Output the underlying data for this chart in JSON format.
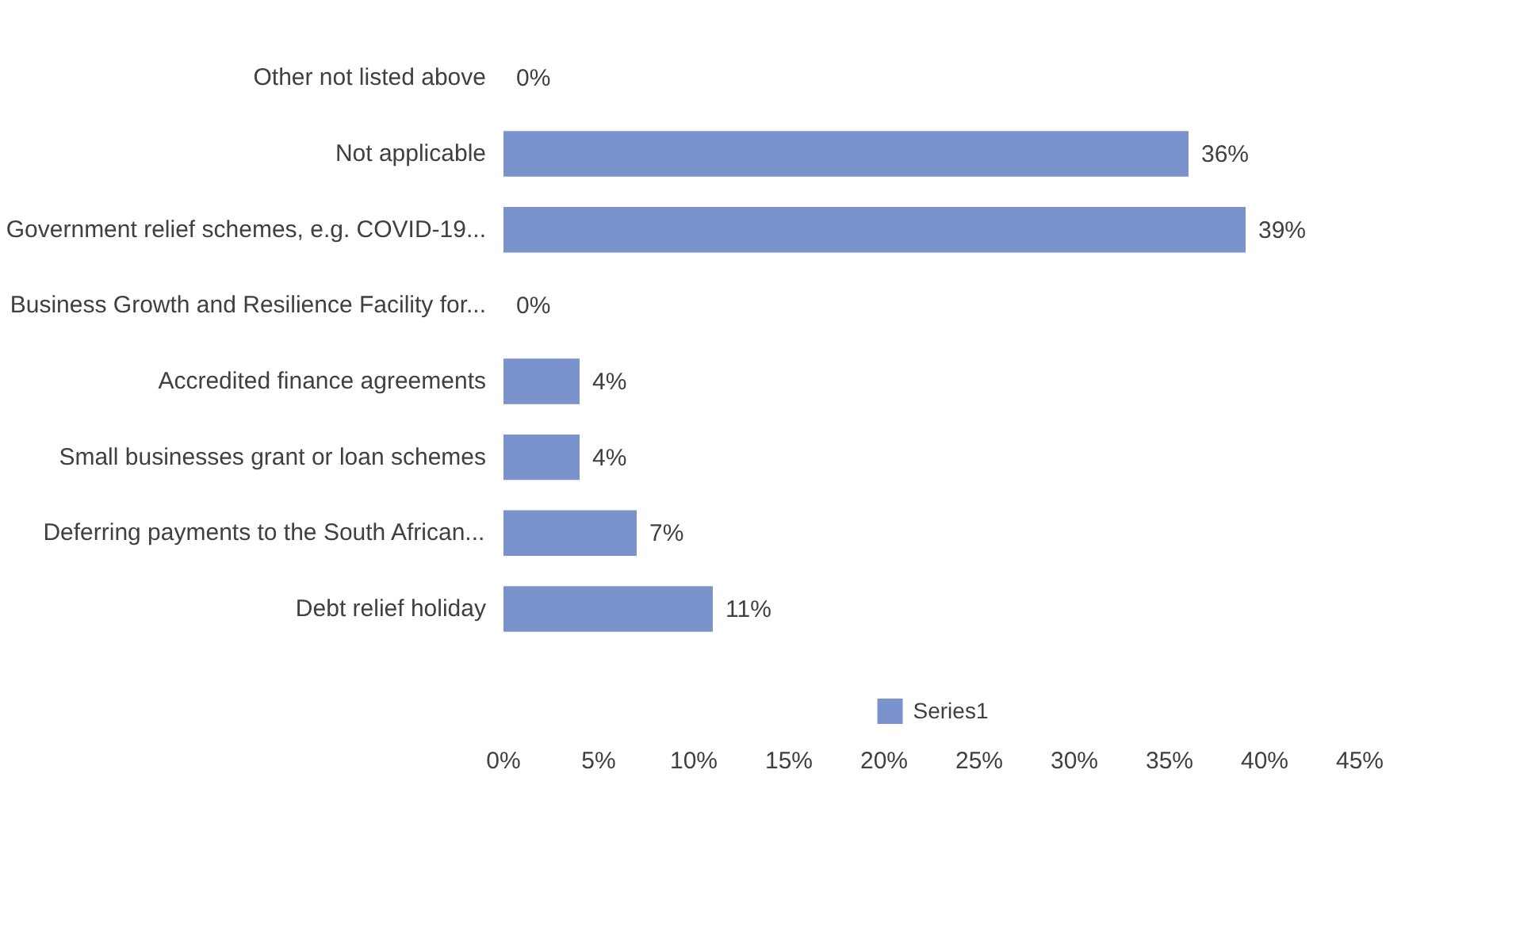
{
  "chart_data": {
    "type": "bar",
    "orientation": "horizontal",
    "categories": [
      "Other not listed above",
      "Not applicable",
      "Government relief schemes, e.g. COVID-19...",
      "Business Growth and Resilience Facility for...",
      "Accredited finance agreements",
      "Small businesses grant or loan schemes",
      "Deferring payments to the South African...",
      "Debt relief holiday"
    ],
    "series": [
      {
        "name": "Series1",
        "color": "#7b93cc",
        "values": [
          0,
          36,
          39,
          0,
          4,
          4,
          7,
          11
        ]
      }
    ],
    "value_labels": [
      "0%",
      "36%",
      "39%",
      "0%",
      "4%",
      "4%",
      "7%",
      "11%"
    ],
    "xlim": [
      0,
      45
    ],
    "xticks": [
      {
        "value": 0,
        "label": "0%"
      },
      {
        "value": 5,
        "label": "5%"
      },
      {
        "value": 10,
        "label": "10%"
      },
      {
        "value": 15,
        "label": "15%"
      },
      {
        "value": 20,
        "label": "20%"
      },
      {
        "value": 25,
        "label": "25%"
      },
      {
        "value": 30,
        "label": "30%"
      },
      {
        "value": 35,
        "label": "35%"
      },
      {
        "value": 40,
        "label": "40%"
      },
      {
        "value": 45,
        "label": "45%"
      }
    ],
    "grid": false,
    "legend": "bottom"
  }
}
